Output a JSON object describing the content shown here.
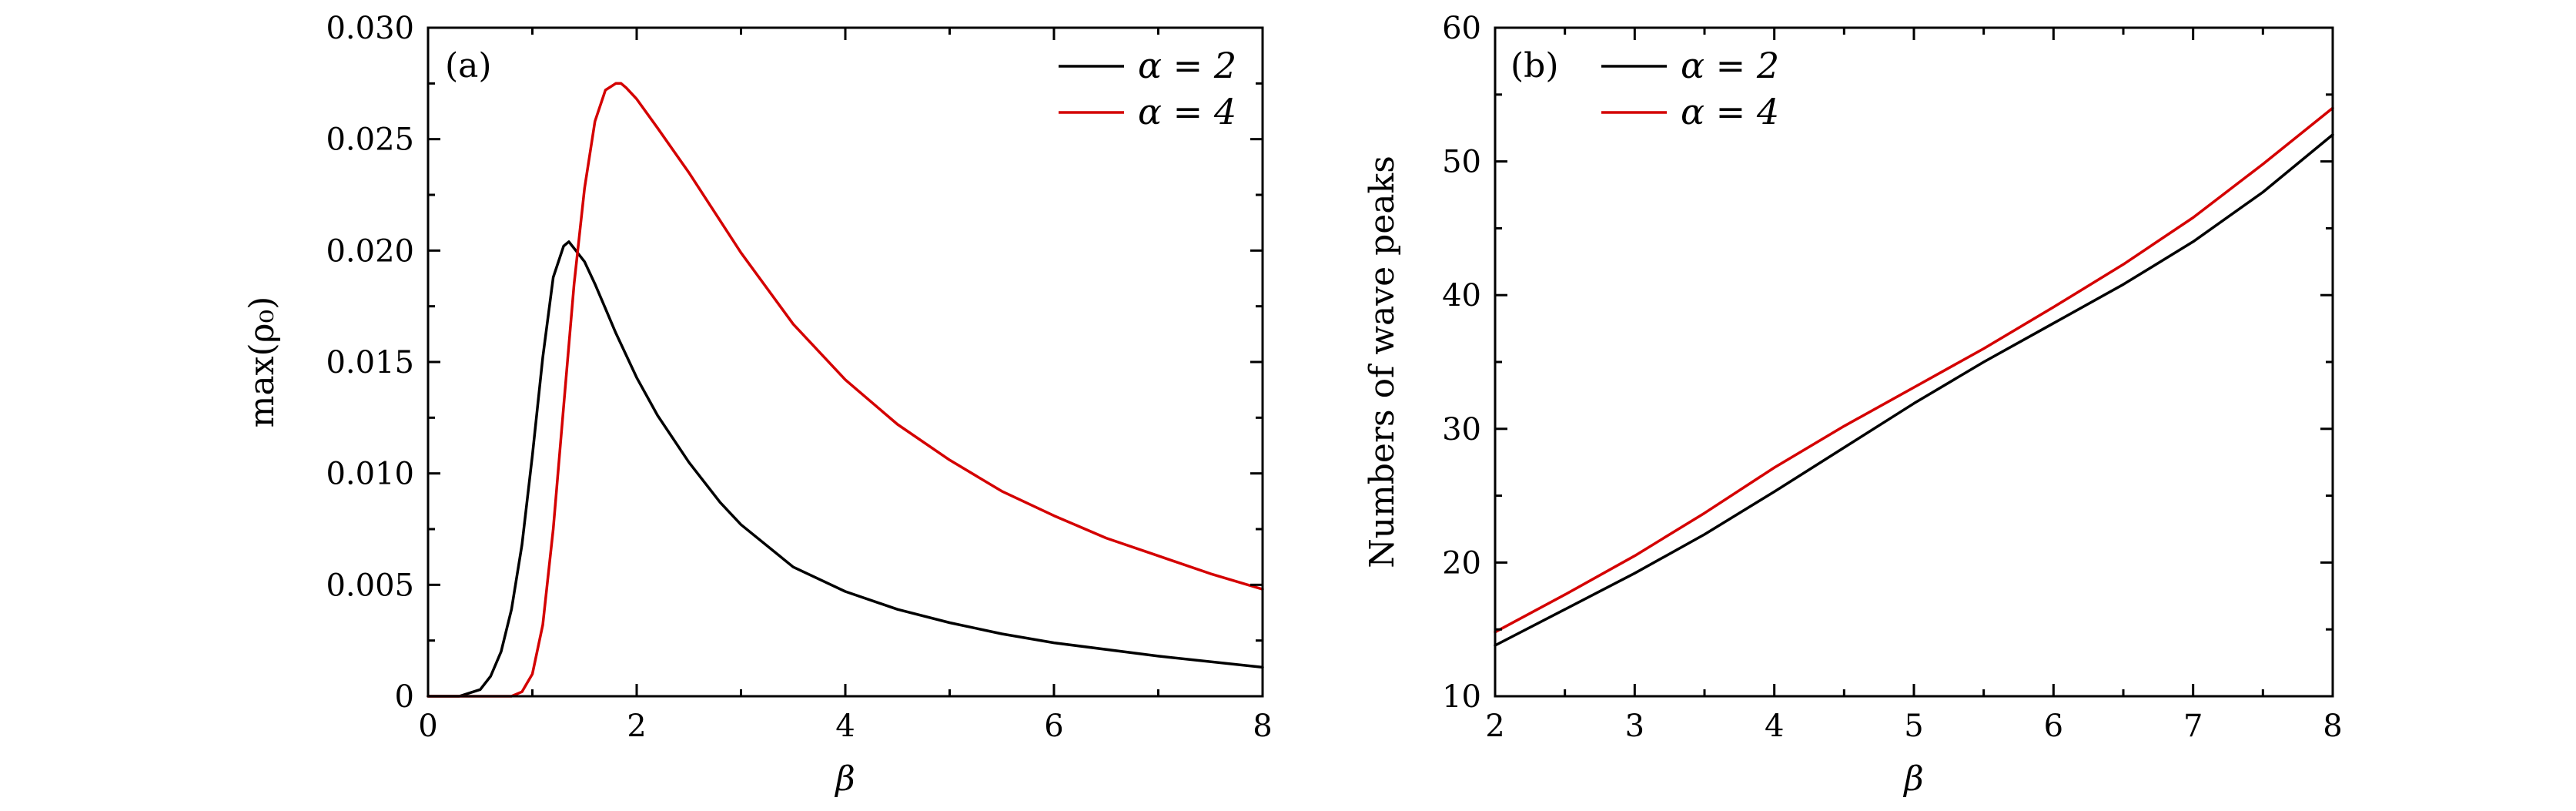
{
  "colors": {
    "alpha2": "#000000",
    "alpha4": "#d40000"
  },
  "chart_data": [
    {
      "type": "line",
      "panel": "(a)",
      "xlabel": "β",
      "ylabel": "max(ρ₀)",
      "xlim": [
        0,
        8
      ],
      "ylim": [
        0,
        0.03
      ],
      "xticks": [
        0,
        2,
        4,
        6,
        8
      ],
      "xtick_labels": [
        "0",
        "2",
        "4",
        "6",
        "8"
      ],
      "yticks": [
        0,
        0.005,
        0.01,
        0.015,
        0.02,
        0.025,
        0.03
      ],
      "ytick_labels": [
        "0",
        "0.005",
        "0.010",
        "0.015",
        "0.020",
        "0.025",
        "0.030"
      ],
      "legend_position": "top-right",
      "series": [
        {
          "name": "α = 2",
          "color": "#000000",
          "x": [
            0,
            0.3,
            0.5,
            0.6,
            0.7,
            0.8,
            0.9,
            1.0,
            1.1,
            1.2,
            1.3,
            1.35,
            1.4,
            1.5,
            1.6,
            1.7,
            1.8,
            2.0,
            2.2,
            2.5,
            2.8,
            3.0,
            3.5,
            4.0,
            4.5,
            5.0,
            5.5,
            6.0,
            7.0,
            8.0
          ],
          "y": [
            0,
            0,
            0.0003,
            0.0009,
            0.002,
            0.0039,
            0.0068,
            0.0108,
            0.0152,
            0.0188,
            0.0202,
            0.0204,
            0.0201,
            0.0195,
            0.0185,
            0.0174,
            0.0163,
            0.0143,
            0.0126,
            0.0105,
            0.0087,
            0.0077,
            0.0058,
            0.0047,
            0.0039,
            0.0033,
            0.0028,
            0.0024,
            0.0018,
            0.0013
          ]
        },
        {
          "name": "α = 4",
          "color": "#d40000",
          "x": [
            0,
            0.8,
            0.9,
            1.0,
            1.1,
            1.2,
            1.3,
            1.4,
            1.5,
            1.6,
            1.7,
            1.8,
            1.85,
            1.9,
            2.0,
            2.2,
            2.5,
            3.0,
            3.5,
            4.0,
            4.5,
            5.0,
            5.5,
            6.0,
            6.5,
            7.0,
            7.5,
            8.0
          ],
          "y": [
            0,
            0,
            0.0002,
            0.001,
            0.0032,
            0.0075,
            0.013,
            0.0185,
            0.0228,
            0.0258,
            0.0272,
            0.0275,
            0.0275,
            0.0273,
            0.0268,
            0.0255,
            0.0235,
            0.0199,
            0.0167,
            0.0142,
            0.0122,
            0.0106,
            0.0092,
            0.0081,
            0.0071,
            0.0063,
            0.0055,
            0.0048
          ]
        }
      ]
    },
    {
      "type": "line",
      "panel": "(b)",
      "xlabel": "β",
      "ylabel": "Numbers of wave peaks",
      "xlim": [
        2,
        8
      ],
      "ylim": [
        10,
        60
      ],
      "xticks": [
        2,
        3,
        4,
        5,
        6,
        7,
        8
      ],
      "xtick_labels": [
        "2",
        "3",
        "4",
        "5",
        "6",
        "7",
        "8"
      ],
      "yticks": [
        10,
        20,
        30,
        40,
        50,
        60
      ],
      "ytick_labels": [
        "10",
        "20",
        "30",
        "40",
        "50",
        "60"
      ],
      "legend_position": "top-left",
      "series": [
        {
          "name": "α = 2",
          "color": "#000000",
          "x": [
            2,
            2.5,
            3,
            3.5,
            4,
            4.5,
            5,
            5.5,
            6,
            6.5,
            7,
            7.5,
            8
          ],
          "y": [
            13.8,
            16.5,
            19.2,
            22.1,
            25.3,
            28.6,
            31.9,
            35.0,
            37.9,
            40.8,
            44.0,
            47.7,
            52.0
          ]
        },
        {
          "name": "α = 4",
          "color": "#d40000",
          "x": [
            2,
            2.5,
            3,
            3.5,
            4,
            4.5,
            5,
            5.5,
            6,
            6.5,
            7,
            7.5,
            8
          ],
          "y": [
            14.8,
            17.6,
            20.5,
            23.7,
            27.1,
            30.2,
            33.1,
            36.0,
            39.1,
            42.3,
            45.8,
            49.8,
            54.0
          ]
        }
      ]
    }
  ]
}
